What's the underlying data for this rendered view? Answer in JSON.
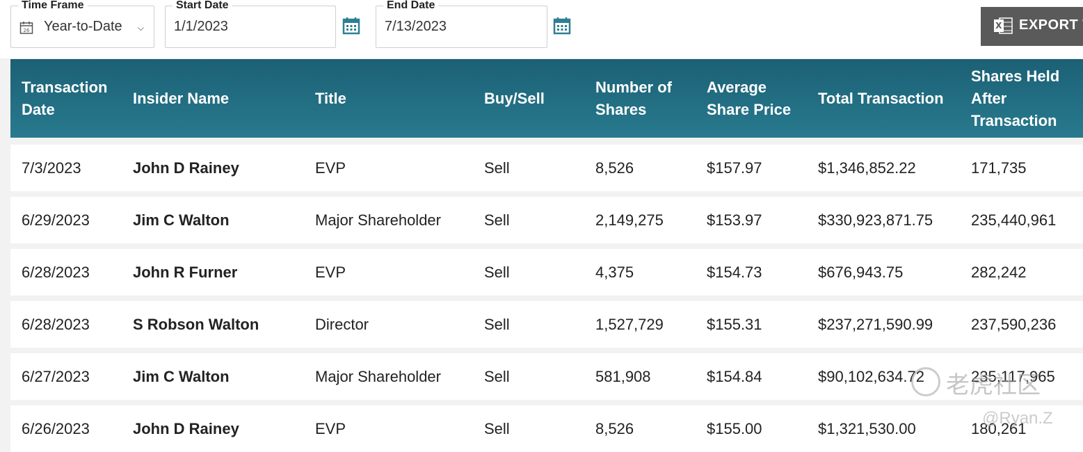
{
  "filters": {
    "time_frame": {
      "legend": "Time Frame",
      "value": "Year-to-Date"
    },
    "start_date": {
      "legend": "Start Date",
      "value": "1/1/2023"
    },
    "end_date": {
      "legend": "End Date",
      "value": "7/13/2023"
    },
    "export_label": "EXPORT T"
  },
  "table": {
    "headers": [
      "Transaction Date",
      "Insider Name",
      "Title",
      "Buy/Sell",
      "Number of Shares",
      "Average Share Price",
      "Total Transaction",
      "Shares Held After Transaction"
    ],
    "rows": [
      [
        "7/3/2023",
        "John D Rainey",
        "EVP",
        "Sell",
        "8,526",
        "$157.97",
        "$1,346,852.22",
        "171,735"
      ],
      [
        "6/29/2023",
        "Jim C Walton",
        "Major Shareholder",
        "Sell",
        "2,149,275",
        "$153.97",
        "$330,923,871.75",
        "235,440,961"
      ],
      [
        "6/28/2023",
        "John R Furner",
        "EVP",
        "Sell",
        "4,375",
        "$154.73",
        "$676,943.75",
        "282,242"
      ],
      [
        "6/28/2023",
        "S Robson Walton",
        "Director",
        "Sell",
        "1,527,729",
        "$155.31",
        "$237,271,590.99",
        "237,590,236"
      ],
      [
        "6/27/2023",
        "Jim C Walton",
        "Major Shareholder",
        "Sell",
        "581,908",
        "$154.84",
        "$90,102,634.72",
        "235,117,965"
      ],
      [
        "6/26/2023",
        "John D Rainey",
        "EVP",
        "Sell",
        "8,526",
        "$155.00",
        "$1,321,530.00",
        "180,261"
      ]
    ]
  },
  "watermark": {
    "text": "老虎社区",
    "user": "@Ryan.Z"
  },
  "icons": {
    "calendar": "calendar-icon",
    "chevron": "chevron-down-icon",
    "excel": "excel-icon"
  },
  "colors": {
    "header_top": "#1c6075",
    "header_bottom": "#287a8e",
    "name_link": "#2b7a8c",
    "calendar_icon": "#2e7f92"
  }
}
